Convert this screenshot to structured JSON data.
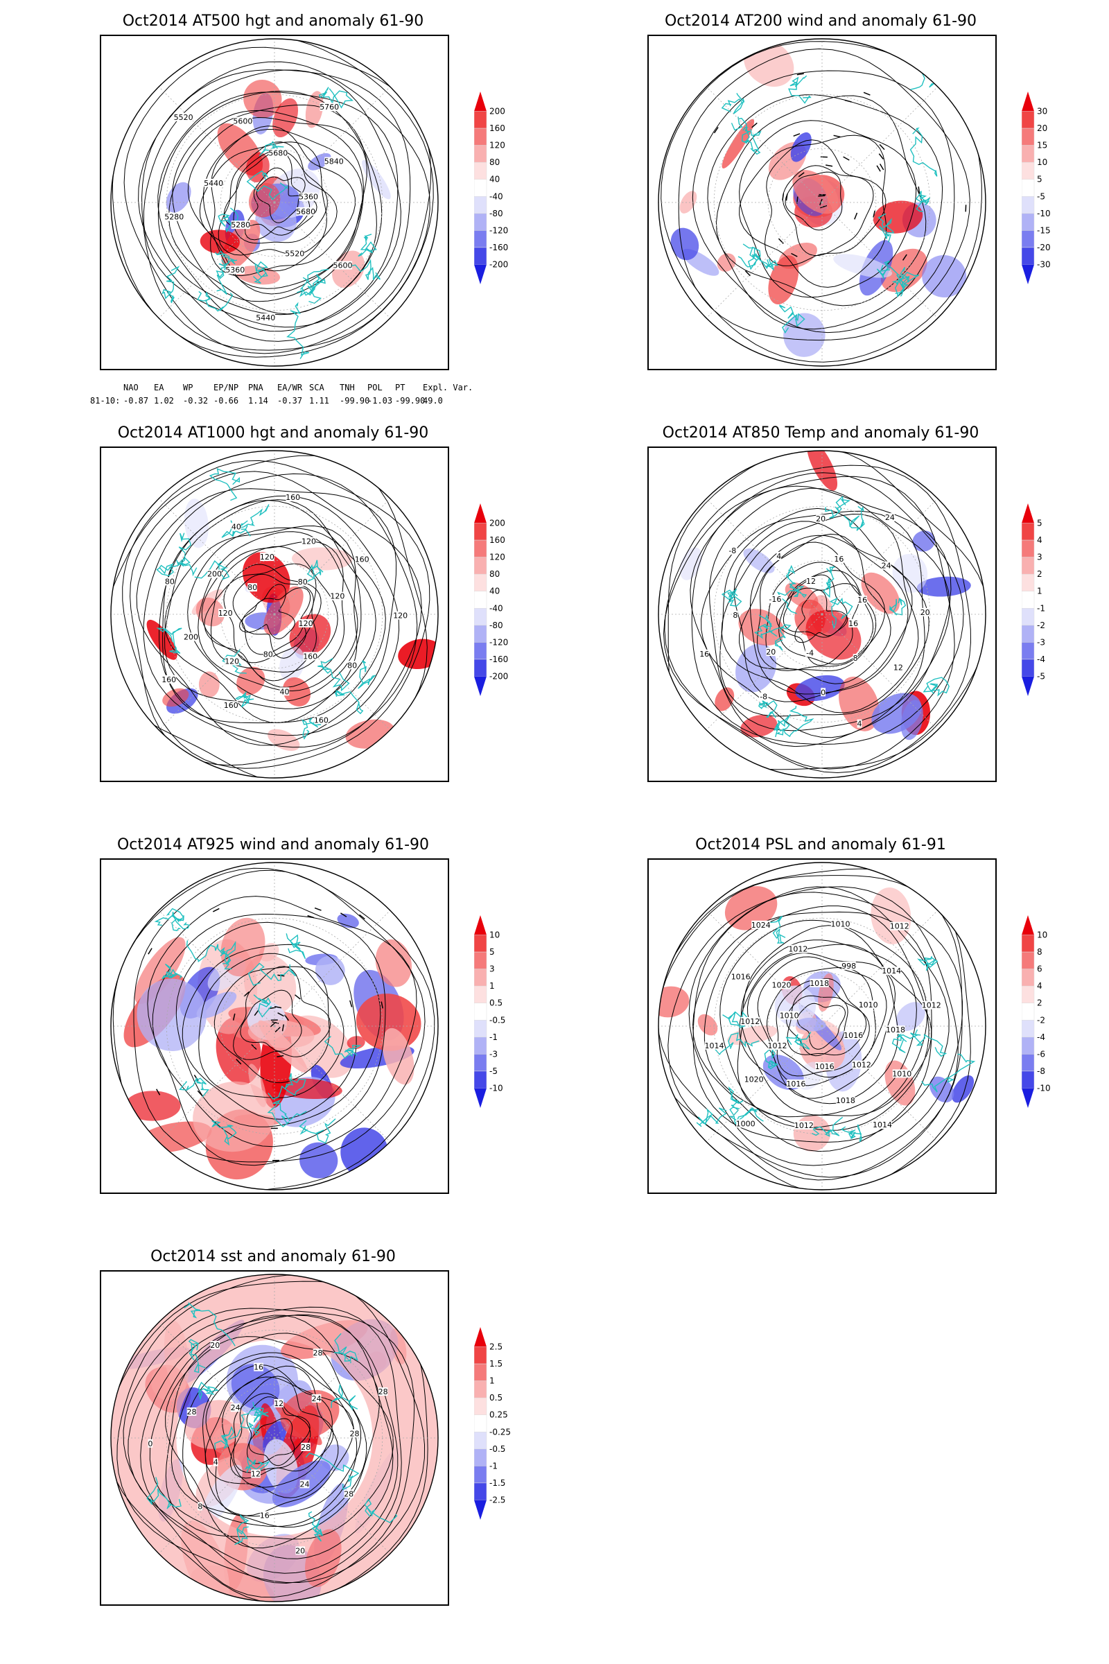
{
  "panels": [
    {
      "title": "Oct2014 AT500 hgt and anomaly 61-90",
      "colorbar": {
        "labels": [
          "200",
          "160",
          "120",
          "80",
          "40",
          "-40",
          "-80",
          "-120",
          "-160",
          "-200"
        ],
        "colors": [
          "#e8000b",
          "#f04545",
          "#f57a7a",
          "#f9b0b0",
          "#fde0e0",
          "#ffffff",
          "#dfe0fb",
          "#b0b2f6",
          "#7a7df0",
          "#4548e8",
          "#1a1ee0"
        ]
      },
      "contour_labels": [
        "5680",
        "5600",
        "5520",
        "5440",
        "5360",
        "5280",
        "5280",
        "5440",
        "5520",
        "5600",
        "5680",
        "5760",
        "5840",
        "5360"
      ]
    },
    {
      "title": "Oct2014 AT200 wind and anomaly 61-90",
      "colorbar": {
        "labels": [
          "30",
          "20",
          "15",
          "10",
          "5",
          "-5",
          "-10",
          "-15",
          "-20",
          "-30"
        ],
        "colors": [
          "#e8000b",
          "#f04545",
          "#f57a7a",
          "#f9b0b0",
          "#fde0e0",
          "#ffffff",
          "#dfe0fb",
          "#b0b2f6",
          "#7a7df0",
          "#4548e8",
          "#1a1ee0"
        ]
      },
      "contour_labels": []
    },
    {
      "title": "Oct2014 AT1000 hgt and anomaly 61-90",
      "colorbar": {
        "labels": [
          "200",
          "160",
          "120",
          "80",
          "40",
          "-40",
          "-80",
          "-120",
          "-160",
          "-200"
        ],
        "colors": [
          "#e8000b",
          "#f04545",
          "#f57a7a",
          "#f9b0b0",
          "#fde0e0",
          "#ffffff",
          "#dfe0fb",
          "#b0b2f6",
          "#7a7df0",
          "#4548e8",
          "#1a1ee0"
        ]
      },
      "contour_labels": [
        "120",
        "80",
        "160",
        "160",
        "40",
        "80",
        "160",
        "120",
        "160",
        "200",
        "120",
        "80",
        "200",
        "80",
        "40",
        "120",
        "160",
        "120",
        "80",
        "160",
        "120",
        "120"
      ]
    },
    {
      "title": "Oct2014 AT850 Temp and anomaly 61-90",
      "colorbar": {
        "labels": [
          "5",
          "4",
          "3",
          "2",
          "1",
          "-1",
          "-2",
          "-3",
          "-4",
          "-5"
        ],
        "colors": [
          "#e8000b",
          "#f04545",
          "#f57a7a",
          "#f9b0b0",
          "#fde0e0",
          "#ffffff",
          "#dfe0fb",
          "#b0b2f6",
          "#7a7df0",
          "#4548e8",
          "#1a1ee0"
        ]
      },
      "contour_labels": [
        "16",
        "12",
        "8",
        "4",
        "0",
        "-4",
        "-8",
        "20",
        "16",
        "8",
        "-16",
        "-8",
        "4",
        "12",
        "20",
        "16",
        "24",
        "24",
        "16",
        "20"
      ]
    },
    {
      "title": "Oct2014 AT925 wind and anomaly 61-90",
      "colorbar": {
        "labels": [
          "10",
          "5",
          "3",
          "1",
          "0.5",
          "-0.5",
          "-1",
          "-3",
          "-5",
          "-10"
        ],
        "colors": [
          "#e8000b",
          "#f04545",
          "#f57a7a",
          "#f9b0b0",
          "#fde0e0",
          "#ffffff",
          "#dfe0fb",
          "#b0b2f6",
          "#7a7df0",
          "#4548e8",
          "#1a1ee0"
        ]
      },
      "contour_labels": []
    },
    {
      "title": "Oct2014 PSL and anomaly 61-91",
      "colorbar": {
        "labels": [
          "10",
          "8",
          "6",
          "4",
          "2",
          "-2",
          "-4",
          "-6",
          "-8",
          "-10"
        ],
        "colors": [
          "#e8000b",
          "#f04545",
          "#f57a7a",
          "#f9b0b0",
          "#fde0e0",
          "#ffffff",
          "#dfe0fb",
          "#b0b2f6",
          "#7a7df0",
          "#4548e8",
          "#1a1ee0"
        ]
      },
      "contour_labels": [
        "1016",
        "1010",
        "1012",
        "1014",
        "1018",
        "1016",
        "1012",
        "1016",
        "1000",
        "1020",
        "1012",
        "1014",
        "1012",
        "1010",
        "1016",
        "1020",
        "1024",
        "1012",
        "1018",
        "1010",
        "998",
        "1012",
        "1014",
        "1010",
        "1012",
        "1018"
      ]
    },
    {
      "title": "Oct2014 sst and anomaly 61-90",
      "colorbar": {
        "labels": [
          "2.5",
          "1.5",
          "1",
          "0.5",
          "0.25",
          "-0.25",
          "-0.5",
          "-1",
          "-1.5",
          "-2.5"
        ],
        "colors": [
          "#e8000b",
          "#f04545",
          "#f57a7a",
          "#f9b0b0",
          "#fde0e0",
          "#ffffff",
          "#dfe0fb",
          "#b0b2f6",
          "#7a7df0",
          "#4548e8",
          "#1a1ee0"
        ]
      },
      "contour_labels": [
        "28",
        "28",
        "24",
        "20",
        "16",
        "12",
        "8",
        "4",
        "0",
        "28",
        "24",
        "20",
        "16",
        "12",
        "28",
        "24",
        "28",
        "28"
      ]
    }
  ],
  "teleconnection_indices": {
    "headers": [
      "NAO",
      "EA",
      "WP",
      "EP/NP",
      "PNA",
      "EA/WR",
      "SCA",
      "TNH",
      "POL",
      "PT",
      "Expl. Var."
    ],
    "row_label": "81-10:",
    "values": [
      "-0.87",
      "1.02",
      "-0.32",
      "-0.66",
      "1.14",
      "-0.37",
      "1.11",
      "-99.90",
      "-1.03",
      "-99.90",
      "49.0"
    ]
  },
  "colors": {
    "coastline": "#20c0c0",
    "contour": "#000000",
    "grid": "#aaaaaa"
  }
}
